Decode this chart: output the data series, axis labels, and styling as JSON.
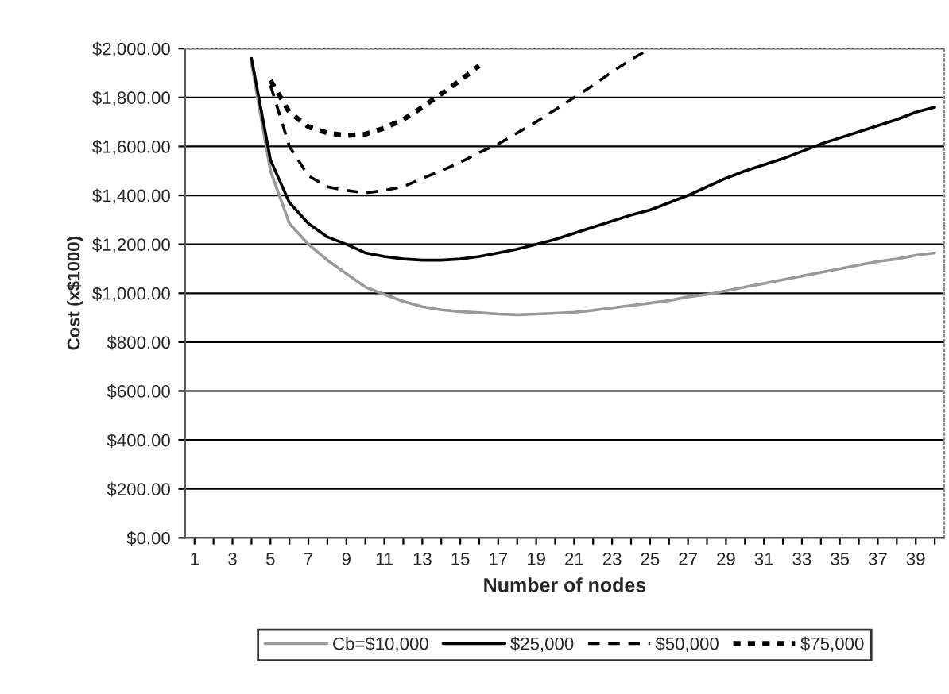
{
  "chart_data": {
    "type": "line",
    "xlabel": "Number of nodes",
    "ylabel": "Cost (x$1000)",
    "categories": [
      "1",
      null,
      "3",
      null,
      "5",
      null,
      "7",
      null,
      "9",
      null,
      "11",
      null,
      "13",
      null,
      "15",
      null,
      "17",
      null,
      "19",
      null,
      "21",
      null,
      "23",
      null,
      "25",
      null,
      "27",
      null,
      "29",
      null,
      "31",
      null,
      "33",
      null,
      "35",
      null,
      "37",
      null,
      "39",
      null
    ],
    "series": [
      {
        "name": "Cb=$10,000",
        "color": "#999999",
        "line_style": "solid",
        "values": [
          null,
          null,
          null,
          1940,
          1500,
          1285,
          1200,
          1135,
          1080,
          1025,
          995,
          967,
          945,
          932,
          925,
          920,
          915,
          912,
          915,
          918,
          922,
          930,
          940,
          950,
          960,
          970,
          985,
          995,
          1010,
          1025,
          1040,
          1055,
          1070,
          1085,
          1100,
          1115,
          1130,
          1140,
          1155,
          1165
        ]
      },
      {
        "name": "$25,000",
        "color": "#000000",
        "line_style": "solid",
        "values": [
          null,
          null,
          null,
          1960,
          1545,
          1370,
          1285,
          1230,
          1200,
          1165,
          1150,
          1140,
          1135,
          1135,
          1140,
          1150,
          1165,
          1180,
          1200,
          1220,
          1245,
          1270,
          1295,
          1320,
          1340,
          1370,
          1400,
          1435,
          1470,
          1500,
          1525,
          1550,
          1580,
          1610,
          1635,
          1660,
          1685,
          1710,
          1740,
          1760
        ]
      },
      {
        "name": "$50,000",
        "color": "#000000",
        "line_style": "dashed",
        "values": [
          null,
          null,
          null,
          null,
          1850,
          1600,
          1480,
          1435,
          1420,
          1410,
          1420,
          1435,
          1470,
          1500,
          1535,
          1575,
          1610,
          1655,
          1700,
          1750,
          1800,
          1850,
          1905,
          1955,
          2000,
          null,
          null,
          null,
          null,
          null,
          null,
          null,
          null,
          null,
          null,
          null,
          null,
          null,
          null,
          null
        ]
      },
      {
        "name": "$75,000",
        "color": "#000000",
        "line_style": "dotted",
        "values": [
          null,
          null,
          null,
          null,
          1870,
          1740,
          1680,
          1655,
          1645,
          1650,
          1675,
          1710,
          1760,
          1815,
          1870,
          1930,
          null,
          null,
          null,
          null,
          null,
          null,
          null,
          null,
          null,
          null,
          null,
          null,
          null,
          null,
          null,
          null,
          null,
          null,
          null,
          null,
          null,
          null,
          null,
          null
        ]
      }
    ],
    "ylim": [
      0,
      2000
    ],
    "yticks": [
      {
        "value": 0,
        "label": "$0.00"
      },
      {
        "value": 200,
        "label": "$200.00"
      },
      {
        "value": 400,
        "label": "$400.00"
      },
      {
        "value": 600,
        "label": "$600.00"
      },
      {
        "value": 800,
        "label": "$800.00"
      },
      {
        "value": 1000,
        "label": "$1,000.00"
      },
      {
        "value": 1200,
        "label": "$1,200.00"
      },
      {
        "value": 1400,
        "label": "$1,400.00"
      },
      {
        "value": 1600,
        "label": "$1,600.00"
      },
      {
        "value": 1800,
        "label": "$1,800.00"
      },
      {
        "value": 2000,
        "label": "$2,000.00"
      }
    ],
    "grid": "y",
    "legend": "bottom"
  }
}
